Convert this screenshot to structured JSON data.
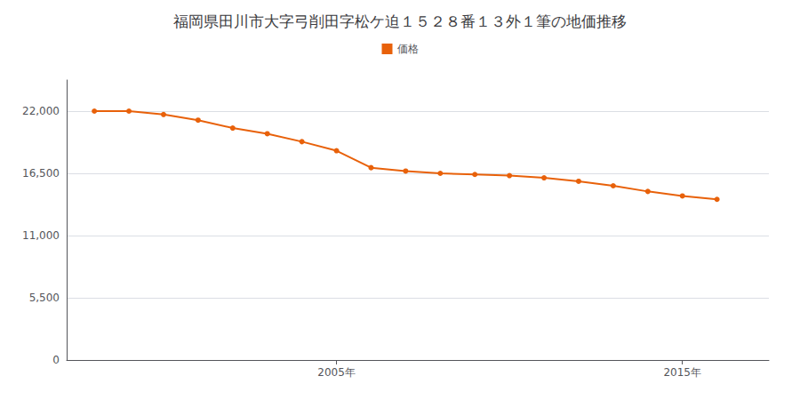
{
  "chart_data": {
    "type": "line",
    "title": "福岡県田川市大字弓削田字松ケ迫１５２８番１３外１筆の地価推移",
    "x": [
      1998,
      1999,
      2000,
      2001,
      2002,
      2003,
      2004,
      2005,
      2006,
      2007,
      2008,
      2009,
      2010,
      2011,
      2012,
      2013,
      2014,
      2015,
      2016
    ],
    "series": [
      {
        "name": "価格",
        "color": "#e8610a",
        "marker": "circle",
        "values": [
          22000,
          22000,
          21700,
          21200,
          20500,
          20000,
          19300,
          18500,
          17000,
          16700,
          16500,
          16400,
          16300,
          16100,
          15800,
          15400,
          14900,
          14500,
          14200
        ]
      }
    ],
    "xlim": [
      1997.2,
      2017.5
    ],
    "xticks": [
      {
        "value": 2005,
        "label": "2005年"
      },
      {
        "value": 2015,
        "label": "2015年"
      }
    ],
    "ylim": [
      0,
      24750
    ],
    "yticks": [
      0,
      {
        "value": 5500,
        "label": "5,500"
      },
      {
        "value": 11000,
        "label": "11,000"
      },
      {
        "value": 16500,
        "label": "16,500"
      },
      {
        "value": 22000,
        "label": "22,000"
      }
    ],
    "grid": true,
    "legend": "top"
  }
}
